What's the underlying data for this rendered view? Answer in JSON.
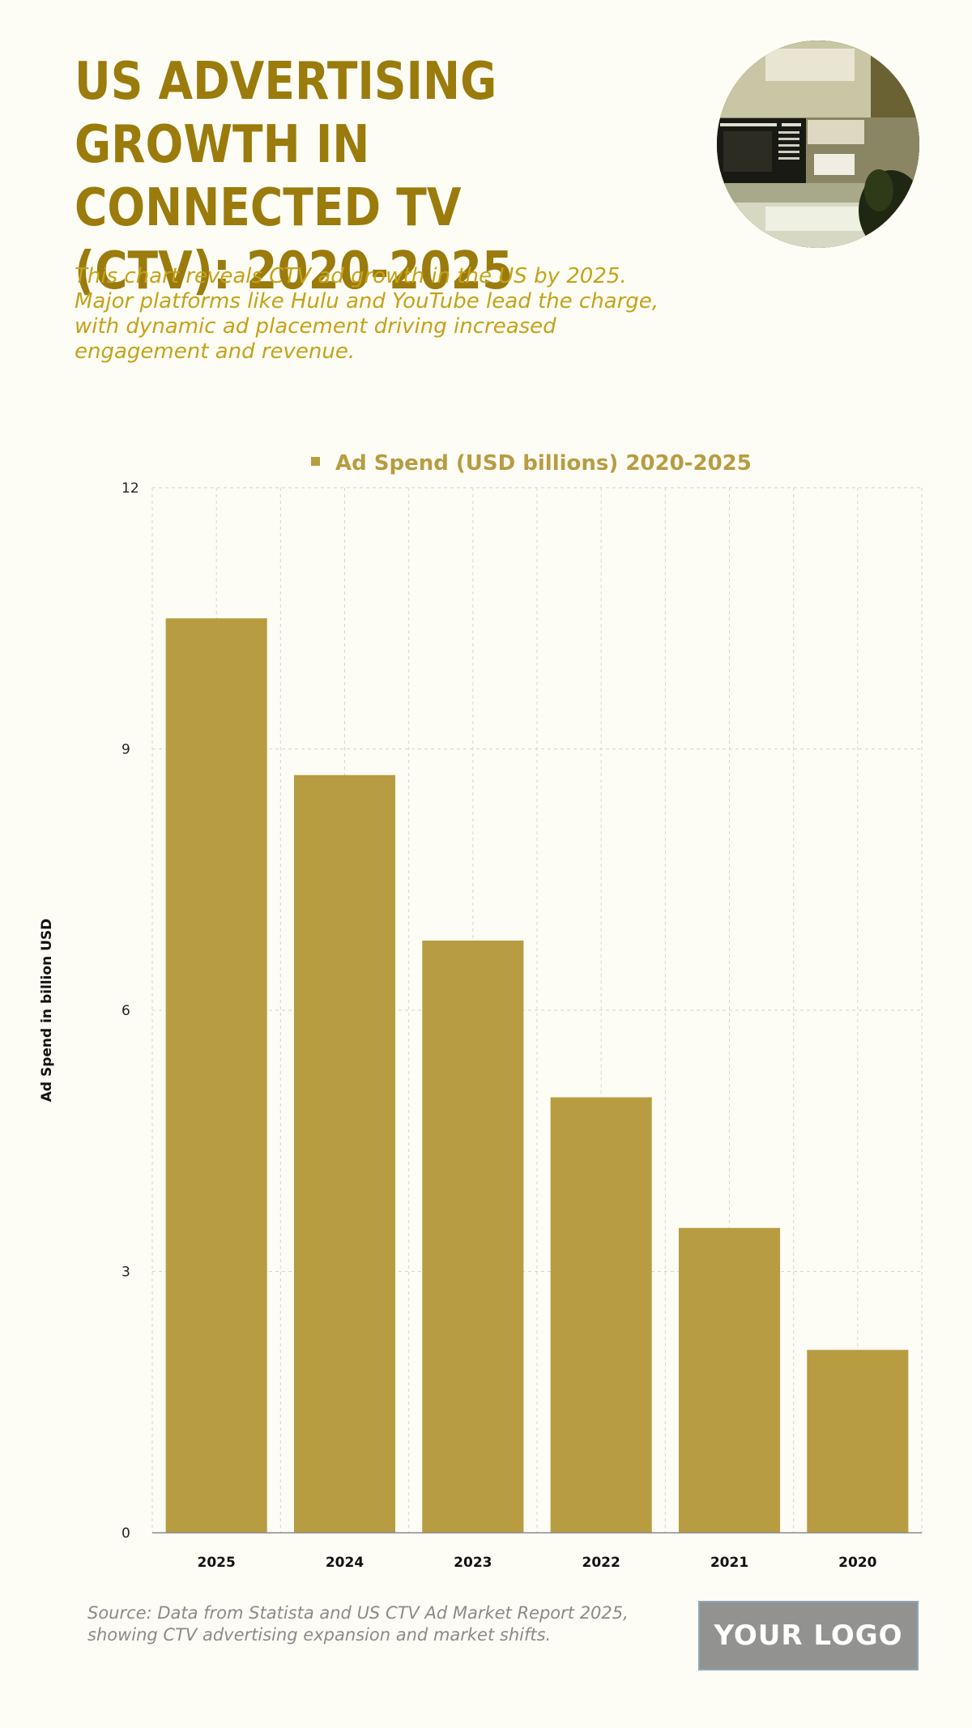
{
  "header": {
    "title": "US ADVERTISING GROWTH IN CONNECTED TV (CTV): 2020-2025",
    "subtitle": "This chart reveals CTV ad growth in the US by 2025. Major platforms like Hulu and YouTube lead the charge, with dynamic ad placement driving increased engagement and revenue."
  },
  "footer": {
    "source": "Source: Data from Statista and US CTV Ad Market Report 2025, showing CTV advertising expansion and market shifts.",
    "logo_text": "YOUR LOGO"
  },
  "colors": {
    "title": "#9a7b0c",
    "subtitle": "#c4a21a",
    "bar": "#b89c42",
    "legend_text": "#b89c42",
    "background": "#fefdf5"
  },
  "chart_data": {
    "type": "bar",
    "categories": [
      "2025",
      "2024",
      "2023",
      "2022",
      "2021",
      "2020"
    ],
    "series": [
      {
        "name": "Ad Spend (USD billions) 2020-2025",
        "values": [
          10.5,
          8.7,
          6.8,
          5.0,
          3.5,
          2.1
        ]
      }
    ],
    "xlabel": "",
    "ylabel": "Ad Spend in billion USD",
    "ylim": [
      0,
      12
    ],
    "yticks": [
      0,
      3,
      6,
      9,
      12
    ],
    "grid": true,
    "legend_position": "top-center"
  }
}
